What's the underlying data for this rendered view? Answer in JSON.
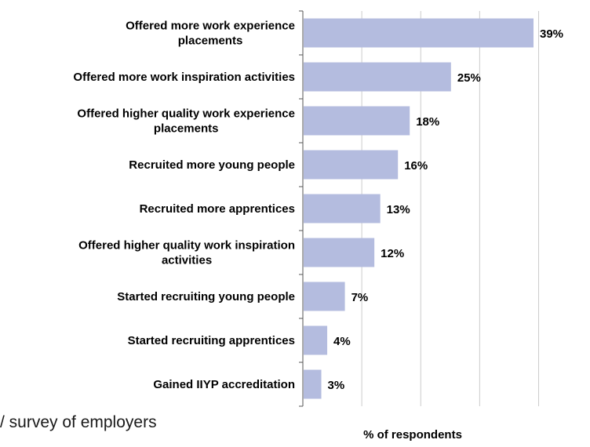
{
  "footnote": "/ survey of employers",
  "chart_data": {
    "type": "bar",
    "orientation": "horizontal",
    "categories": [
      [
        "Offered more work experience",
        "placements"
      ],
      [
        "Offered more work inspiration activities"
      ],
      [
        "Offered higher quality work experience",
        "placements"
      ],
      [
        "Recruited more young people"
      ],
      [
        "Recruited more apprentices"
      ],
      [
        "Offered higher quality work inspiration",
        "activities"
      ],
      [
        "Started recruiting young people"
      ],
      [
        "Started recruiting apprentices"
      ],
      [
        "Gained IIYP accreditation"
      ]
    ],
    "values": [
      39,
      25,
      18,
      16,
      13,
      12,
      7,
      4,
      3
    ],
    "value_labels": [
      "39%",
      "25%",
      "18%",
      "16%",
      "13%",
      "12%",
      "7%",
      "4%",
      "3%"
    ],
    "title": "",
    "xlabel": "% of respondents",
    "ylabel": "",
    "xlim": [
      0,
      40
    ],
    "grid": "vertical",
    "legend": "none",
    "bar_color": "#b4bcdf",
    "gridline_color": "#cccccc",
    "axis_color": "#555555",
    "text_color": "#000000"
  }
}
